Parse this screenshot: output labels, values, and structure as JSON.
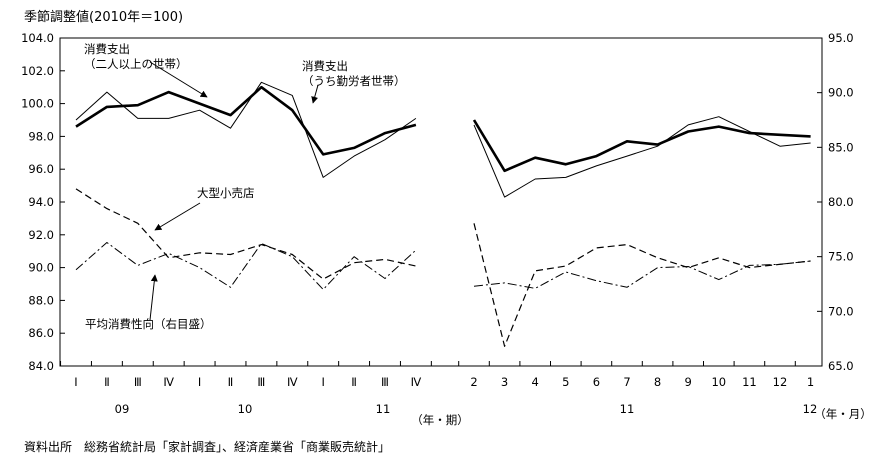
{
  "title": "季節調整値(2010年＝100)",
  "source": "資料出所　総務省統計局「家計調査」、経済産業省「商業販売統計」",
  "chart_data": {
    "type": "line",
    "left_axis": {
      "min": 84,
      "max": 104,
      "step": 2,
      "tick_labels": [
        "84.0",
        "86.0",
        "88.0",
        "90.0",
        "92.0",
        "94.0",
        "96.0",
        "98.0",
        "100.0",
        "102.0",
        "104.0"
      ]
    },
    "right_axis": {
      "min": 65,
      "max": 95,
      "step": 5,
      "tick_labels": [
        "65.0",
        "70.0",
        "75.0",
        "80.0",
        "85.0",
        "90.0",
        "95.0"
      ]
    },
    "quarterly": {
      "x_labels": [
        "Ⅰ",
        "Ⅱ",
        "Ⅲ",
        "Ⅳ",
        "Ⅰ",
        "Ⅱ",
        "Ⅲ",
        "Ⅳ",
        "Ⅰ",
        "Ⅱ",
        "Ⅲ",
        "Ⅳ"
      ],
      "year_labels": [
        "09",
        "10",
        "11"
      ],
      "unit_label": "（年・期）"
    },
    "monthly": {
      "x_labels": [
        "2",
        "3",
        "4",
        "5",
        "6",
        "7",
        "8",
        "9",
        "10",
        "11",
        "12",
        "1"
      ],
      "year_labels": [
        "11",
        "12"
      ],
      "unit_label": "（年・月）"
    },
    "series": [
      {
        "name": "消費支出（二人以上の世帯）",
        "label_lines": [
          "消費支出",
          "（二人以上の世帯）"
        ],
        "axis": "left",
        "style": "thick",
        "quarterly": [
          98.6,
          99.8,
          99.9,
          100.7,
          100.0,
          99.3,
          101.0,
          99.6,
          96.9,
          97.3,
          98.2,
          98.7
        ],
        "monthly": [
          99.0,
          95.9,
          96.7,
          96.3,
          96.8,
          97.7,
          97.5,
          98.3,
          98.6,
          98.2,
          98.1,
          98.0
        ]
      },
      {
        "name": "消費支出（うち勤労者世帯）",
        "label_lines": [
          "消費支出",
          "（うち勤労者世帯）"
        ],
        "axis": "left",
        "style": "thin",
        "quarterly": [
          99.0,
          100.7,
          99.1,
          99.1,
          99.6,
          98.5,
          101.3,
          100.5,
          95.5,
          96.8,
          97.8,
          99.1
        ],
        "monthly": [
          98.7,
          94.3,
          95.4,
          95.5,
          96.2,
          96.8,
          97.4,
          98.7,
          99.2,
          98.3,
          97.4,
          97.6
        ]
      },
      {
        "name": "大型小売店",
        "label_lines": [
          "大型小売店"
        ],
        "axis": "left",
        "style": "dashed",
        "quarterly": [
          94.8,
          93.6,
          92.7,
          90.6,
          90.9,
          90.8,
          91.4,
          90.8,
          89.3,
          90.3,
          90.5,
          90.1
        ],
        "monthly": [
          92.7,
          85.2,
          89.8,
          90.1,
          91.2,
          91.4,
          90.6,
          90.0,
          90.6,
          90.0,
          90.2,
          90.4
        ]
      },
      {
        "name": "平均消費性向（右目盛）",
        "label_lines": [
          "平均消費性向（右目盛）"
        ],
        "axis": "right",
        "style": "dashdot",
        "quarterly": [
          73.8,
          76.3,
          74.2,
          75.3,
          74.0,
          72.2,
          76.2,
          75.0,
          72.0,
          75.0,
          73.0,
          75.6
        ],
        "monthly": [
          72.3,
          72.6,
          72.1,
          73.6,
          72.8,
          72.2,
          74.0,
          74.1,
          72.9,
          74.2,
          74.3,
          74.6
        ]
      }
    ]
  }
}
